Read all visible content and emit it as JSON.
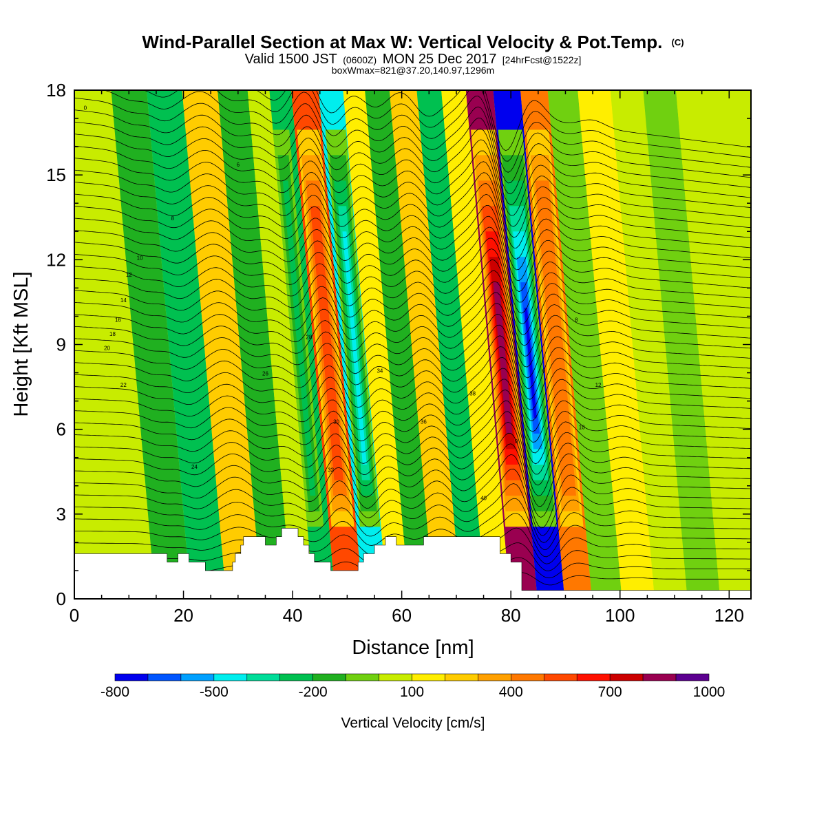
{
  "chart_data": {
    "type": "heatmap",
    "title": "Wind-Parallel Section at Max W: Vertical Velocity & Pot.Temp.",
    "title_mark": "(C)",
    "subtitle_parts": [
      "Valid 1500 JST",
      "(0600Z)",
      "MON 25 Dec 2017",
      "[24hrFcst@1522z]"
    ],
    "subtitle2": "boxWmax=821@37.20,140.97,1296m",
    "xlabel": "Distance [nm]",
    "ylabel": "Height [Kft MSL]",
    "xlim": [
      0,
      124
    ],
    "ylim": [
      0,
      18
    ],
    "x_ticks": [
      0,
      20,
      40,
      60,
      80,
      100,
      120
    ],
    "y_ticks": [
      0,
      3,
      6,
      9,
      12,
      15,
      18
    ],
    "colorbar": {
      "title": "Vertical Velocity [cm/s]",
      "range": [
        -800,
        1000
      ],
      "interval": 100,
      "labels": [
        -800,
        -500,
        -200,
        100,
        400,
        700,
        1000
      ],
      "colors": [
        "#0000ee",
        "#0055ff",
        "#00a0ff",
        "#00eeee",
        "#00dd99",
        "#00c050",
        "#20b020",
        "#70d010",
        "#c8ec00",
        "#ffee00",
        "#ffcc00",
        "#ffa000",
        "#ff7800",
        "#ff4800",
        "#ff1000",
        "#cc0000",
        "#990050",
        "#5c0090"
      ]
    },
    "vertical_velocity_bands_cm_per_s": [
      {
        "x_nm": 0,
        "w": 20
      },
      {
        "x_nm": 10,
        "w": 0
      },
      {
        "x_nm": 17,
        "w": -150
      },
      {
        "x_nm": 23,
        "w": -250
      },
      {
        "x_nm": 30,
        "w": 200
      },
      {
        "x_nm": 36,
        "w": -150
      },
      {
        "x_nm": 41,
        "w": 50
      },
      {
        "x_nm": 44,
        "w": -300
      },
      {
        "x_nm": 49,
        "w": 500
      },
      {
        "x_nm": 54,
        "w": -450
      },
      {
        "x_nm": 58,
        "w": 150
      },
      {
        "x_nm": 62,
        "w": -200
      },
      {
        "x_nm": 67,
        "w": 250
      },
      {
        "x_nm": 72,
        "w": -250
      },
      {
        "x_nm": 76,
        "w": 150
      },
      {
        "x_nm": 81,
        "w": 821
      },
      {
        "x_nm": 86,
        "w": -800
      },
      {
        "x_nm": 91,
        "w": 450
      },
      {
        "x_nm": 96,
        "w": -100
      },
      {
        "x_nm": 102,
        "w": 150
      },
      {
        "x_nm": 108,
        "w": 0
      },
      {
        "x_nm": 114,
        "w": -100
      },
      {
        "x_nm": 120,
        "w": 0
      }
    ],
    "terrain_kft": [
      [
        0,
        1.6
      ],
      [
        17,
        1.6
      ],
      [
        17,
        1.3
      ],
      [
        19,
        1.3
      ],
      [
        19,
        1.6
      ],
      [
        21,
        1.6
      ],
      [
        21,
        1.3
      ],
      [
        24,
        1.3
      ],
      [
        24,
        1.0
      ],
      [
        28,
        1.0
      ],
      [
        28,
        1.0
      ],
      [
        29,
        1.0
      ],
      [
        29,
        1.3
      ],
      [
        29.5,
        1.3
      ],
      [
        29.5,
        1.6
      ],
      [
        30.5,
        1.6
      ],
      [
        30.5,
        1.9
      ],
      [
        31,
        1.9
      ],
      [
        31,
        2.2
      ],
      [
        35,
        2.2
      ],
      [
        35,
        1.9
      ],
      [
        37,
        1.9
      ],
      [
        37,
        2.2
      ],
      [
        38,
        2.2
      ],
      [
        38,
        2.5
      ],
      [
        41,
        2.5
      ],
      [
        41,
        2.2
      ],
      [
        42,
        2.2
      ],
      [
        42,
        1.9
      ],
      [
        43,
        1.9
      ],
      [
        43,
        1.6
      ],
      [
        44,
        1.6
      ],
      [
        44,
        1.3
      ],
      [
        47,
        1.3
      ],
      [
        47,
        1.0
      ],
      [
        52,
        1.0
      ],
      [
        52,
        1.3
      ],
      [
        53,
        1.3
      ],
      [
        53,
        1.6
      ],
      [
        55,
        1.6
      ],
      [
        55,
        1.9
      ],
      [
        57,
        1.9
      ],
      [
        57,
        2.2
      ],
      [
        59,
        2.2
      ],
      [
        59,
        1.9
      ],
      [
        64,
        1.9
      ],
      [
        64,
        2.2
      ],
      [
        78,
        2.2
      ],
      [
        78,
        1.6
      ],
      [
        80,
        1.6
      ],
      [
        80,
        1.3
      ],
      [
        82,
        1.3
      ],
      [
        82,
        0.3
      ],
      [
        124,
        0.3
      ]
    ],
    "theta_contour_labels": [
      "0",
      "6",
      "8",
      "10",
      "12",
      "14",
      "16",
      "18",
      "20",
      "22",
      "24",
      "26",
      "28",
      "30",
      "32",
      "34",
      "36",
      "38",
      "40"
    ]
  }
}
